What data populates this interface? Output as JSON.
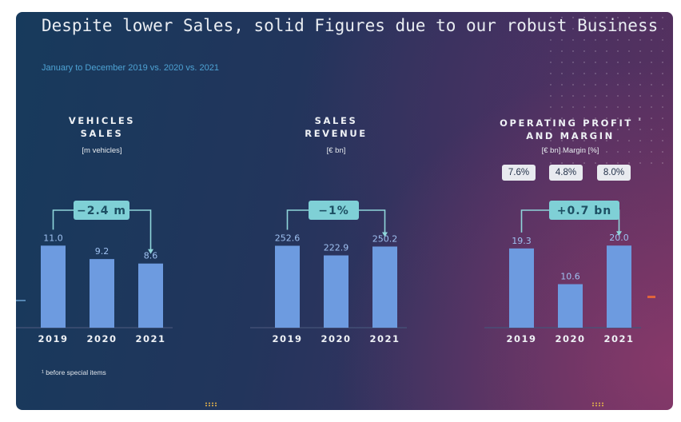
{
  "slide": {
    "title": "Despite lower Sales, solid Figures due to our robust Business",
    "subtitle": "January to December 2019 vs. 2020 vs. 2021",
    "footnote": "¹ before special items"
  },
  "colors": {
    "bar": "#6d9be0",
    "value_label": "#9fc1f0",
    "callout_fill": "#7fd0d6",
    "callout_text": "#1d4f63",
    "connector": "#8fd6da",
    "baseline": "#46557a"
  },
  "chart_data": [
    {
      "type": "bar",
      "title": "VEHICLES SALES",
      "unit": "[m vehicles]",
      "categories": [
        "2019",
        "2020",
        "2021"
      ],
      "values": [
        11.0,
        9.2,
        8.6
      ],
      "value_labels": [
        "11.0",
        "9.2",
        "8.6"
      ],
      "callout": "−2.4 m",
      "ylim": [
        0,
        12
      ]
    },
    {
      "type": "bar",
      "title": "SALES REVENUE",
      "unit": "[€ bn]",
      "categories": [
        "2019",
        "2020",
        "2021"
      ],
      "values": [
        252.6,
        222.9,
        250.2
      ],
      "value_labels": [
        "252.6",
        "222.9",
        "250.2"
      ],
      "callout": "−1%",
      "ylim": [
        0,
        276
      ]
    },
    {
      "type": "bar",
      "title": "OPERATING PROFIT ¹ AND MARGIN",
      "unit": "[€ bn] Margin [%]",
      "categories": [
        "2019",
        "2020",
        "2021"
      ],
      "values": [
        19.3,
        10.6,
        20.0
      ],
      "value_labels": [
        "19.3",
        "10.6",
        "20.0"
      ],
      "margins": [
        "7.6%",
        "4.8%",
        "8.0%"
      ],
      "callout": "+0.7 bn",
      "ylim": [
        0,
        21.8
      ]
    }
  ]
}
